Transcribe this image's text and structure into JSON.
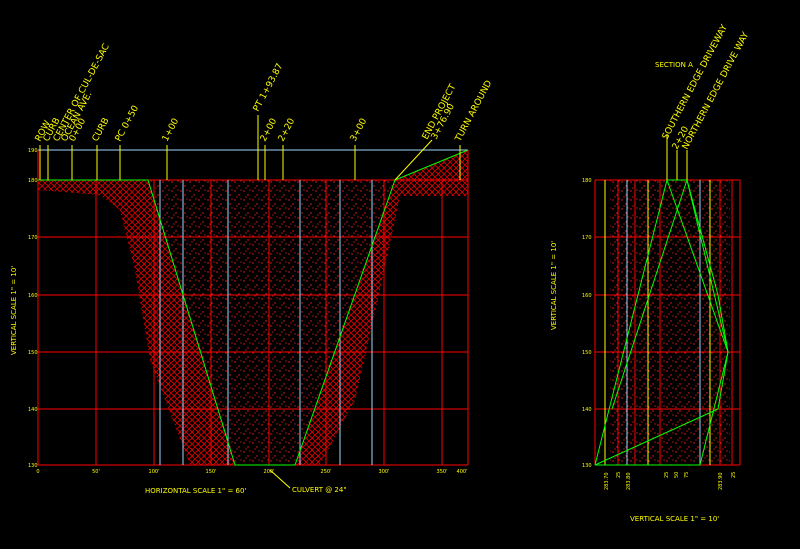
{
  "profile": {
    "station_labels": [
      "ROW",
      "CURB",
      "CENTER OF CUL-DE-SAC",
      "OCEAN AVE.",
      "0+00",
      "CURB",
      "PC 0+50",
      "1+00",
      "PT 1+93.87",
      "2+00",
      "2+20",
      "3+00",
      "END PROJECT",
      "3+76.90",
      "TURN AROUND"
    ],
    "y_labels": [
      "190",
      "180",
      "170",
      "160",
      "150",
      "140",
      "130"
    ],
    "x_labels": [
      "0",
      "50'",
      "100'",
      "150'",
      "200'",
      "250'",
      "300'",
      "350'",
      "400'"
    ],
    "vertical_scale": "VERTICAL SCALE 1\" = 10'",
    "horizontal_scale": "HORIZONTAL SCALE 1\" = 60'",
    "culvert": "CULVERT @ 24\""
  },
  "section_a": {
    "title": "SECTION A",
    "station_labels": [
      "SOUTHERN EDGE DRIVEWAY",
      "2+20",
      "NORTHERN EDGE DRIVE WAY"
    ],
    "y_labels": [
      "180",
      "170",
      "160",
      "150",
      "140",
      "130"
    ],
    "x_labels": [
      "283.70",
      "25",
      "283.80",
      "25",
      "50",
      "75",
      "283.90",
      "25"
    ],
    "vertical_scale": "VERTICAL SCALE 1\" = 10'",
    "side_scale": "VERTICAL SCALE 1\" = 10'"
  }
}
